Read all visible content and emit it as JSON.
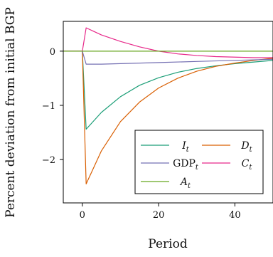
{
  "chart_data": {
    "type": "line",
    "title": "",
    "xlabel": "Period",
    "ylabel": "Percent deviation from initial BGP",
    "xlim": [
      -5,
      50
    ],
    "ylim": [
      -2.8,
      0.55
    ],
    "xticks": [
      0,
      20,
      40
    ],
    "yticks": [
      0,
      -1,
      -2
    ],
    "xtick_labels": [
      "0",
      "20",
      "40"
    ],
    "ytick_labels": [
      "0",
      "−1",
      "−2"
    ],
    "grid": false,
    "legend_position": "bottom-right",
    "series": [
      {
        "name": "I_t",
        "color": "#1b9e77",
        "x": [
          -5,
          0,
          1,
          5,
          10,
          15,
          20,
          25,
          30,
          35,
          40,
          45,
          50
        ],
        "y": [
          0,
          0,
          -1.44,
          -1.13,
          -0.84,
          -0.63,
          -0.49,
          -0.39,
          -0.32,
          -0.27,
          -0.23,
          -0.2,
          -0.17
        ]
      },
      {
        "name": "D_t",
        "color": "#d95f02",
        "x": [
          -5,
          0,
          1,
          5,
          10,
          15,
          20,
          25,
          30,
          35,
          40,
          45,
          50
        ],
        "y": [
          0,
          0,
          -2.45,
          -1.84,
          -1.3,
          -0.94,
          -0.68,
          -0.5,
          -0.37,
          -0.28,
          -0.22,
          -0.17,
          -0.13
        ]
      },
      {
        "name": "GDP_t",
        "color": "#7570b3",
        "x": [
          -5,
          0,
          1,
          5,
          10,
          20,
          30,
          40,
          50
        ],
        "y": [
          0,
          0,
          -0.24,
          -0.24,
          -0.23,
          -0.21,
          -0.19,
          -0.17,
          -0.15
        ]
      },
      {
        "name": "C_t",
        "color": "#e7298a",
        "x": [
          -5,
          0,
          1,
          5,
          10,
          15,
          20,
          25,
          30,
          35,
          40,
          45,
          50
        ],
        "y": [
          0,
          0,
          0.43,
          0.3,
          0.18,
          0.08,
          0.0,
          -0.05,
          -0.08,
          -0.1,
          -0.11,
          -0.12,
          -0.12
        ]
      },
      {
        "name": "A_t",
        "color": "#66a61e",
        "x": [
          -5,
          50
        ],
        "y": [
          0,
          0
        ]
      }
    ],
    "legend": [
      {
        "base": "I",
        "sub": "t",
        "color": "#1b9e77",
        "upright": false
      },
      {
        "base": "D",
        "sub": "t",
        "color": "#d95f02",
        "upright": false
      },
      {
        "base": "GDP",
        "sub": "t",
        "color": "#7570b3",
        "upright": true
      },
      {
        "base": "C",
        "sub": "t",
        "color": "#e7298a",
        "upright": false
      },
      {
        "base": "A",
        "sub": "t",
        "color": "#66a61e",
        "upright": false
      }
    ]
  }
}
